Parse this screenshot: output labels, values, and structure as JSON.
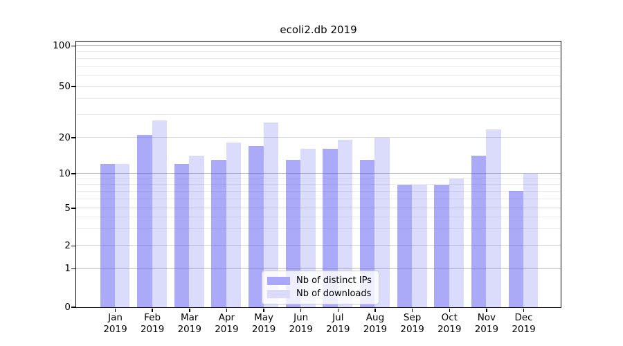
{
  "chart_data": {
    "type": "bar",
    "title": "ecoli2.db 2019",
    "categories": [
      "Jan",
      "Feb",
      "Mar",
      "Apr",
      "May",
      "Jun",
      "Jul",
      "Aug",
      "Sep",
      "Oct",
      "Nov",
      "Dec"
    ],
    "x_tick_second_line": "2019",
    "series": [
      {
        "name": "Nb of distinct IPs",
        "values": [
          12,
          21,
          12,
          13,
          17,
          13,
          16,
          13,
          8,
          8,
          14,
          7
        ],
        "fill": "rgba(92,92,242,0.52)",
        "swatch": "#a9a9f8"
      },
      {
        "name": "Nb of downloads",
        "values": [
          12,
          27,
          14,
          18,
          26,
          16,
          19,
          20,
          8,
          9,
          23,
          10
        ],
        "fill": "rgba(92,92,242,0.22)",
        "swatch": "#dadafb"
      }
    ],
    "y_axis": {
      "tick_labels": [
        "0",
        "1",
        "2",
        "5",
        "10",
        "20",
        "50",
        "100"
      ],
      "tick_values": [
        0,
        1,
        2,
        5,
        10,
        20,
        50,
        100
      ],
      "major_gridlines": [
        1,
        10,
        100
      ],
      "labeled_minor_gridlines": [
        2,
        5,
        20,
        50
      ],
      "unlabeled_minor_gridlines": [
        3,
        4,
        6,
        7,
        8,
        9,
        30,
        40,
        60,
        70,
        80,
        90
      ],
      "scale": "symlog-like",
      "anchors": [
        [
          0,
          0
        ],
        [
          1,
          0.1451
        ],
        [
          2,
          0.231
        ],
        [
          5,
          0.3724
        ],
        [
          10,
          0.5026
        ],
        [
          20,
          0.638
        ],
        [
          50,
          0.8307
        ],
        [
          100,
          0.9836
        ]
      ]
    },
    "grid": true,
    "legend": {
      "position": "lower-center"
    },
    "colors": {
      "spine": "#000000",
      "text": "#000000",
      "major_grid": "#b4b4b4",
      "labeled_minor_grid": "#d9d9d9",
      "minor_grid": "#ebebeb",
      "legend_bg": "rgba(255,255,255,0.8)",
      "legend_border": "#cccccc"
    }
  }
}
